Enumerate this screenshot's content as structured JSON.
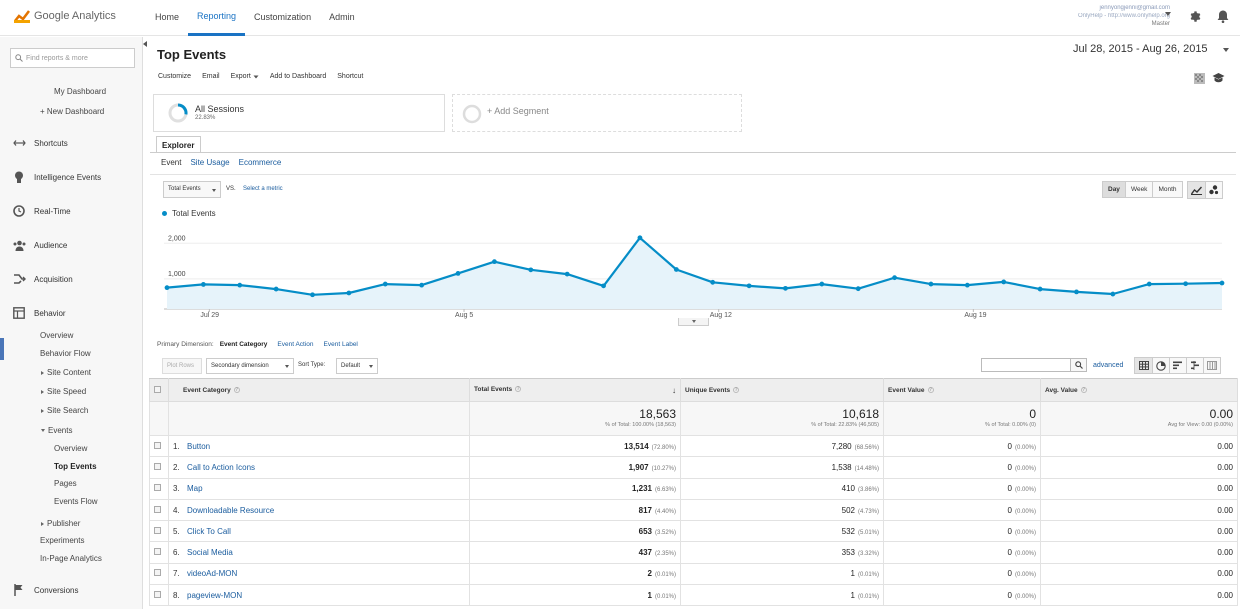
{
  "app": {
    "name": "Google Analytics"
  },
  "nav": [
    "Home",
    "Reporting",
    "Customization",
    "Admin"
  ],
  "nav_active": "Reporting",
  "account": {
    "email": "jennyongjenni@gmail.com",
    "property": "OnlyHelp - http://www.onlyhelp.org",
    "view": "Master"
  },
  "sidebar": {
    "search_placeholder": "Find reports & more",
    "items": {
      "my_dashboard": "My Dashboard",
      "new_dashboard": "+ New Dashboard",
      "shortcuts": "Shortcuts",
      "intelligence": "Intelligence Events",
      "realtime": "Real-Time",
      "audience": "Audience",
      "acquisition": "Acquisition",
      "behavior": "Behavior",
      "overview": "Overview",
      "behavior_flow": "Behavior Flow",
      "site_content": "Site Content",
      "site_speed": "Site Speed",
      "site_search": "Site Search",
      "events": "Events",
      "events_overview": "Overview",
      "top_events": "Top Events",
      "pages": "Pages",
      "events_flow": "Events Flow",
      "publisher": "Publisher",
      "experiments": "Experiments",
      "inpage": "In-Page Analytics",
      "conversions": "Conversions"
    }
  },
  "report": {
    "title": "Top Events",
    "date_range": "Jul 28, 2015 - Aug 26, 2015",
    "actions": [
      "Customize",
      "Email",
      "Export",
      "Add to Dashboard",
      "Shortcut"
    ]
  },
  "segments": {
    "name": "All Sessions",
    "pct": "22.83%",
    "add_label": "+ Add Segment"
  },
  "explorer": {
    "tab": "Explorer",
    "subtabs": [
      "Event",
      "Site Usage",
      "Ecommerce"
    ]
  },
  "chart_controls": {
    "metric": "Total Events",
    "vs": "VS.",
    "select_metric": "Select a metric",
    "granularity": [
      "Day",
      "Week",
      "Month"
    ],
    "granularity_active": "Day"
  },
  "chart_data": {
    "type": "line",
    "series": [
      {
        "name": "Total Events",
        "values": [
          600,
          690,
          670,
          560,
          400,
          450,
          700,
          670,
          1000,
          1330,
          1100,
          980,
          650,
          2000,
          1110,
          750,
          650,
          580,
          700,
          570,
          880,
          700,
          670,
          760,
          560,
          480,
          420,
          700,
          710,
          730
        ]
      }
    ],
    "x_tick_labels": [
      "Jul 29",
      "Aug 5",
      "Aug 12",
      "Aug 19"
    ],
    "x_tick_index": [
      1,
      8,
      15,
      22
    ],
    "y_ticks": [
      "2,000",
      "1,000"
    ],
    "y_tick_values": [
      2000,
      1000
    ],
    "ylim": [
      0,
      2500
    ],
    "color": "#058dc7",
    "fill": "#e6f3fa"
  },
  "dimensions": {
    "label": "Primary Dimension:",
    "items": [
      "Event Category",
      "Event Action",
      "Event Label"
    ],
    "active": "Event Category"
  },
  "table_controls": {
    "plot_rows": "Plot Rows",
    "secondary": "Secondary dimension",
    "sort_label": "Sort Type:",
    "sort_value": "Default",
    "advanced": "advanced"
  },
  "table": {
    "headers": [
      "Event Category",
      "Total Events",
      "Unique Events",
      "Event Value",
      "Avg. Value"
    ],
    "totals": {
      "total_events": "18,563",
      "total_events_sub": "% of Total: 100.00% (18,563)",
      "unique_events": "10,618",
      "unique_events_sub": "% of Total: 22.83% (46,505)",
      "event_value": "0",
      "event_value_sub": "% of Total: 0.00% (0)",
      "avg_value": "0.00",
      "avg_value_sub": "Avg for View: 0.00 (0.00%)"
    },
    "rows": [
      {
        "idx": "1.",
        "name": "Button",
        "total": "13,514",
        "total_pct": "(72.80%)",
        "unique": "7,280",
        "unique_pct": "(68.56%)",
        "value": "0",
        "value_pct": "(0.00%)",
        "avg": "0.00"
      },
      {
        "idx": "2.",
        "name": "Call to Action Icons",
        "total": "1,907",
        "total_pct": "(10.27%)",
        "unique": "1,538",
        "unique_pct": "(14.48%)",
        "value": "0",
        "value_pct": "(0.00%)",
        "avg": "0.00"
      },
      {
        "idx": "3.",
        "name": "Map",
        "total": "1,231",
        "total_pct": "(6.63%)",
        "unique": "410",
        "unique_pct": "(3.86%)",
        "value": "0",
        "value_pct": "(0.00%)",
        "avg": "0.00"
      },
      {
        "idx": "4.",
        "name": "Downloadable Resource",
        "total": "817",
        "total_pct": "(4.40%)",
        "unique": "502",
        "unique_pct": "(4.73%)",
        "value": "0",
        "value_pct": "(0.00%)",
        "avg": "0.00"
      },
      {
        "idx": "5.",
        "name": "Click To Call",
        "total": "653",
        "total_pct": "(3.52%)",
        "unique": "532",
        "unique_pct": "(5.01%)",
        "value": "0",
        "value_pct": "(0.00%)",
        "avg": "0.00"
      },
      {
        "idx": "6.",
        "name": "Social Media",
        "total": "437",
        "total_pct": "(2.35%)",
        "unique": "353",
        "unique_pct": "(3.32%)",
        "value": "0",
        "value_pct": "(0.00%)",
        "avg": "0.00"
      },
      {
        "idx": "7.",
        "name": "videoAd-MON",
        "total": "2",
        "total_pct": "(0.01%)",
        "unique": "1",
        "unique_pct": "(0.01%)",
        "value": "0",
        "value_pct": "(0.00%)",
        "avg": "0.00"
      },
      {
        "idx": "8.",
        "name": "pageview-MON",
        "total": "1",
        "total_pct": "(0.01%)",
        "unique": "1",
        "unique_pct": "(0.01%)",
        "value": "0",
        "value_pct": "(0.00%)",
        "avg": "0.00"
      }
    ]
  },
  "colors": {
    "accent": "#1a73c4",
    "link": "#1a5c9e",
    "series": "#058dc7",
    "ga_orange": "#e37400"
  }
}
